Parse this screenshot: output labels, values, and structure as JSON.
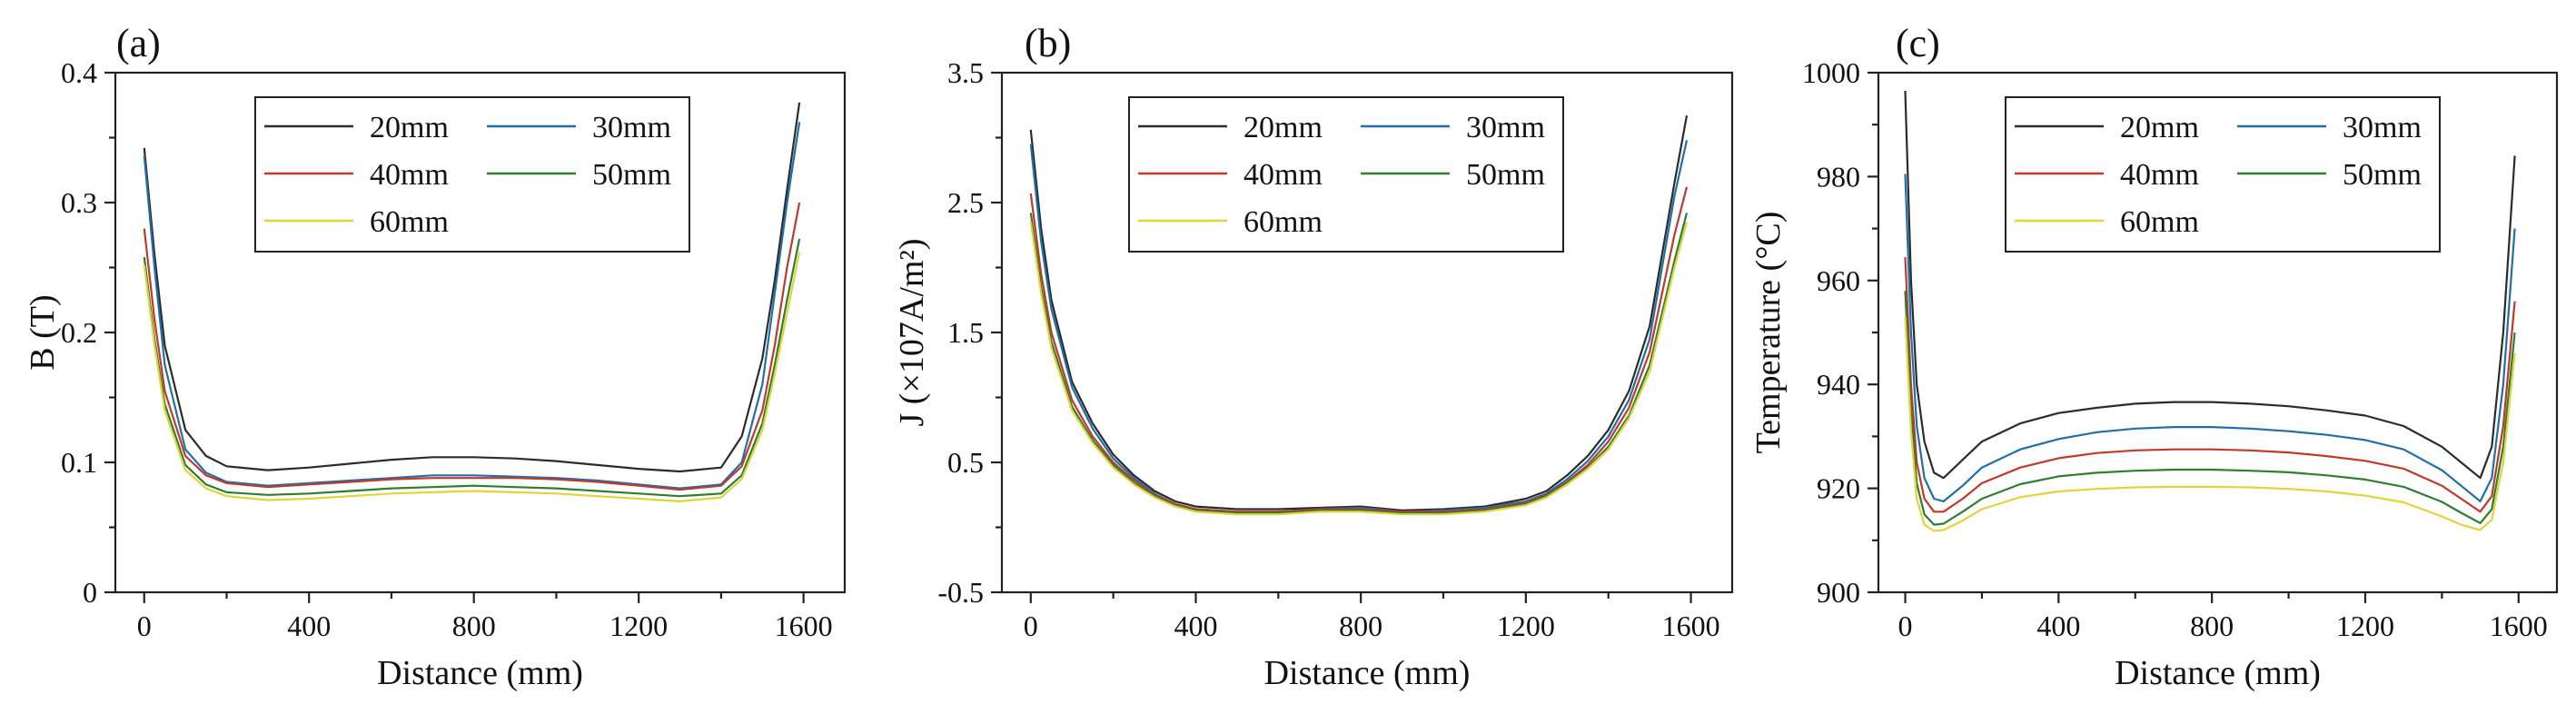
{
  "chart_data": [
    {
      "type": "line",
      "panel_label": "(a)",
      "xlabel": "Distance (mm)",
      "ylabel": "B (T)",
      "xlim": [
        -70,
        1700
      ],
      "ylim": [
        0,
        0.4
      ],
      "xticks": [
        0,
        400,
        800,
        1200,
        1600
      ],
      "xtick_labels": [
        "0",
        "400",
        "800",
        "1200",
        "1600"
      ],
      "yticks": [
        0,
        0.1,
        0.2,
        0.3,
        0.4
      ],
      "ytick_labels": [
        "0",
        "0.1",
        "0.2",
        "0.3",
        "0.4"
      ],
      "grid": false,
      "legend_position": "top-center",
      "series": [
        {
          "name": "20mm",
          "color": "#2b2b2b",
          "x": [
            0,
            25,
            50,
            100,
            150,
            200,
            300,
            400,
            500,
            600,
            700,
            800,
            900,
            1000,
            1100,
            1200,
            1300,
            1400,
            1450,
            1500,
            1530,
            1560,
            1590
          ],
          "y": [
            0.342,
            0.26,
            0.19,
            0.125,
            0.105,
            0.097,
            0.094,
            0.096,
            0.099,
            0.102,
            0.104,
            0.104,
            0.103,
            0.101,
            0.098,
            0.095,
            0.093,
            0.096,
            0.12,
            0.18,
            0.24,
            0.31,
            0.377
          ]
        },
        {
          "name": "30mm",
          "color": "#1f6fa8",
          "x": [
            0,
            25,
            50,
            100,
            150,
            200,
            300,
            400,
            500,
            600,
            700,
            800,
            900,
            1000,
            1100,
            1200,
            1300,
            1400,
            1450,
            1500,
            1530,
            1560,
            1590
          ],
          "y": [
            0.336,
            0.25,
            0.175,
            0.11,
            0.092,
            0.085,
            0.082,
            0.084,
            0.086,
            0.088,
            0.09,
            0.09,
            0.089,
            0.088,
            0.086,
            0.083,
            0.08,
            0.083,
            0.1,
            0.16,
            0.23,
            0.3,
            0.362
          ]
        },
        {
          "name": "40mm",
          "color": "#c0392b",
          "x": [
            0,
            25,
            50,
            100,
            150,
            200,
            300,
            400,
            500,
            600,
            700,
            800,
            900,
            1000,
            1100,
            1200,
            1300,
            1400,
            1450,
            1500,
            1530,
            1560,
            1590
          ],
          "y": [
            0.28,
            0.21,
            0.155,
            0.105,
            0.09,
            0.084,
            0.081,
            0.083,
            0.085,
            0.087,
            0.088,
            0.088,
            0.088,
            0.087,
            0.085,
            0.082,
            0.079,
            0.082,
            0.097,
            0.14,
            0.19,
            0.25,
            0.3
          ]
        },
        {
          "name": "50mm",
          "color": "#2e7d32",
          "x": [
            0,
            25,
            50,
            100,
            150,
            200,
            300,
            400,
            500,
            600,
            700,
            800,
            900,
            1000,
            1100,
            1200,
            1300,
            1400,
            1450,
            1500,
            1530,
            1560,
            1590
          ],
          "y": [
            0.258,
            0.195,
            0.145,
            0.098,
            0.083,
            0.077,
            0.075,
            0.076,
            0.078,
            0.08,
            0.081,
            0.082,
            0.081,
            0.08,
            0.078,
            0.076,
            0.074,
            0.076,
            0.09,
            0.13,
            0.175,
            0.225,
            0.272
          ]
        },
        {
          "name": "60mm",
          "color": "#e3d23a",
          "x": [
            0,
            25,
            50,
            100,
            150,
            200,
            300,
            400,
            500,
            600,
            700,
            800,
            900,
            1000,
            1100,
            1200,
            1300,
            1400,
            1450,
            1500,
            1530,
            1560,
            1590
          ],
          "y": [
            0.252,
            0.19,
            0.14,
            0.094,
            0.08,
            0.074,
            0.071,
            0.072,
            0.074,
            0.076,
            0.077,
            0.078,
            0.077,
            0.076,
            0.074,
            0.072,
            0.07,
            0.073,
            0.087,
            0.125,
            0.168,
            0.215,
            0.262
          ]
        }
      ]
    },
    {
      "type": "line",
      "panel_label": "(b)",
      "xlabel": "Distance (mm)",
      "ylabel": "J (×107A/m²)",
      "xlim": [
        -70,
        1700
      ],
      "ylim": [
        -0.5,
        3.5
      ],
      "xticks": [
        0,
        400,
        800,
        1200,
        1600
      ],
      "xtick_labels": [
        "0",
        "400",
        "800",
        "1200",
        "1600"
      ],
      "yticks": [
        -0.5,
        0.5,
        1.5,
        2.5,
        3.5
      ],
      "ytick_labels": [
        "-0.5",
        "0.5",
        "1.5",
        "2.5",
        "3.5"
      ],
      "grid": false,
      "legend_position": "top-center",
      "series": [
        {
          "name": "20mm",
          "color": "#2b2b2b",
          "x": [
            0,
            25,
            50,
            100,
            150,
            200,
            250,
            300,
            350,
            400,
            500,
            600,
            700,
            800,
            900,
            1000,
            1100,
            1200,
            1250,
            1300,
            1350,
            1400,
            1450,
            1500,
            1530,
            1560,
            1590
          ],
          "y": [
            3.06,
            2.3,
            1.75,
            1.12,
            0.8,
            0.56,
            0.4,
            0.28,
            0.2,
            0.16,
            0.14,
            0.14,
            0.15,
            0.16,
            0.13,
            0.14,
            0.16,
            0.22,
            0.28,
            0.4,
            0.55,
            0.75,
            1.05,
            1.55,
            2.1,
            2.65,
            3.17
          ]
        },
        {
          "name": "30mm",
          "color": "#1f6fa8",
          "x": [
            0,
            25,
            50,
            100,
            150,
            200,
            250,
            300,
            350,
            400,
            500,
            600,
            700,
            800,
            900,
            1000,
            1100,
            1200,
            1250,
            1300,
            1350,
            1400,
            1450,
            1500,
            1530,
            1560,
            1590
          ],
          "y": [
            2.95,
            2.2,
            1.68,
            1.08,
            0.76,
            0.53,
            0.38,
            0.26,
            0.18,
            0.14,
            0.12,
            0.12,
            0.14,
            0.15,
            0.12,
            0.13,
            0.15,
            0.2,
            0.26,
            0.37,
            0.51,
            0.7,
            0.98,
            1.45,
            2.0,
            2.55,
            2.98
          ]
        },
        {
          "name": "40mm",
          "color": "#c0392b",
          "x": [
            0,
            25,
            50,
            100,
            150,
            200,
            250,
            300,
            350,
            400,
            500,
            600,
            700,
            800,
            900,
            1000,
            1100,
            1200,
            1250,
            1300,
            1350,
            1400,
            1450,
            1500,
            1530,
            1560,
            1590
          ],
          "y": [
            2.57,
            1.95,
            1.5,
            0.98,
            0.7,
            0.5,
            0.36,
            0.25,
            0.18,
            0.14,
            0.12,
            0.12,
            0.14,
            0.14,
            0.12,
            0.12,
            0.14,
            0.19,
            0.25,
            0.35,
            0.48,
            0.66,
            0.92,
            1.35,
            1.8,
            2.25,
            2.62
          ]
        },
        {
          "name": "50mm",
          "color": "#2e7d32",
          "x": [
            0,
            25,
            50,
            100,
            150,
            200,
            250,
            300,
            350,
            400,
            500,
            600,
            700,
            800,
            900,
            1000,
            1100,
            1200,
            1250,
            1300,
            1350,
            1400,
            1450,
            1500,
            1530,
            1560,
            1590
          ],
          "y": [
            2.42,
            1.85,
            1.43,
            0.93,
            0.67,
            0.48,
            0.34,
            0.24,
            0.17,
            0.13,
            0.11,
            0.11,
            0.13,
            0.13,
            0.11,
            0.11,
            0.13,
            0.18,
            0.24,
            0.34,
            0.46,
            0.62,
            0.86,
            1.25,
            1.65,
            2.05,
            2.42
          ]
        },
        {
          "name": "60mm",
          "color": "#e3d23a",
          "x": [
            0,
            25,
            50,
            100,
            150,
            200,
            250,
            300,
            350,
            400,
            500,
            600,
            700,
            800,
            900,
            1000,
            1100,
            1200,
            1250,
            1300,
            1350,
            1400,
            1450,
            1500,
            1530,
            1560,
            1590
          ],
          "y": [
            2.35,
            1.8,
            1.38,
            0.9,
            0.65,
            0.46,
            0.33,
            0.23,
            0.16,
            0.12,
            0.1,
            0.1,
            0.12,
            0.12,
            0.1,
            0.1,
            0.12,
            0.17,
            0.23,
            0.33,
            0.45,
            0.6,
            0.84,
            1.2,
            1.6,
            2.0,
            2.35
          ]
        }
      ]
    },
    {
      "type": "line",
      "panel_label": "(c)",
      "xlabel": "Distance (mm)",
      "ylabel": "Temperature (°C)",
      "xlim": [
        -70,
        1700
      ],
      "ylim": [
        900,
        1000
      ],
      "xticks": [
        0,
        400,
        800,
        1200,
        1600
      ],
      "xtick_labels": [
        "0",
        "400",
        "800",
        "1200",
        "1600"
      ],
      "yticks": [
        900,
        920,
        940,
        960,
        980,
        1000
      ],
      "ytick_labels": [
        "900",
        "920",
        "940",
        "960",
        "980",
        "1000"
      ],
      "grid": false,
      "legend_position": "top-center",
      "series": [
        {
          "name": "20mm",
          "color": "#2b2b2b",
          "x": [
            0,
            15,
            30,
            50,
            75,
            100,
            150,
            200,
            300,
            400,
            500,
            600,
            700,
            800,
            900,
            1000,
            1100,
            1200,
            1300,
            1400,
            1450,
            1500,
            1530,
            1560,
            1590
          ],
          "y": [
            996.5,
            960,
            940,
            929,
            923,
            922,
            925.5,
            929,
            932.5,
            934.5,
            935.5,
            936.3,
            936.6,
            936.6,
            936.3,
            935.8,
            935,
            934,
            932,
            928,
            925,
            922,
            928,
            950,
            984
          ]
        },
        {
          "name": "30mm",
          "color": "#1f6fa8",
          "x": [
            0,
            15,
            30,
            50,
            75,
            100,
            150,
            200,
            300,
            400,
            500,
            600,
            700,
            800,
            900,
            1000,
            1100,
            1200,
            1300,
            1400,
            1450,
            1500,
            1530,
            1560,
            1590
          ],
          "y": [
            980.5,
            950,
            932,
            922,
            918,
            917.5,
            920.5,
            924,
            927.5,
            929.5,
            930.8,
            931.5,
            931.8,
            931.8,
            931.5,
            931,
            930.3,
            929.3,
            927.5,
            923.5,
            920.5,
            917.5,
            922,
            940,
            970
          ]
        },
        {
          "name": "40mm",
          "color": "#c0392b",
          "x": [
            0,
            15,
            30,
            50,
            75,
            100,
            150,
            200,
            300,
            400,
            500,
            600,
            700,
            800,
            900,
            1000,
            1100,
            1200,
            1300,
            1400,
            1450,
            1500,
            1530,
            1560,
            1590
          ],
          "y": [
            964.5,
            940,
            925,
            918,
            915.5,
            915.5,
            918,
            921,
            924,
            925.8,
            926.8,
            927.3,
            927.5,
            927.5,
            927.3,
            926.9,
            926.2,
            925.3,
            923.8,
            920.5,
            918,
            915.5,
            918.5,
            932,
            956
          ]
        },
        {
          "name": "50mm",
          "color": "#2e7d32",
          "x": [
            0,
            15,
            30,
            50,
            75,
            100,
            150,
            200,
            300,
            400,
            500,
            600,
            700,
            800,
            900,
            1000,
            1100,
            1200,
            1300,
            1400,
            1450,
            1500,
            1530,
            1560,
            1590
          ],
          "y": [
            958,
            935,
            921,
            915,
            913,
            913.2,
            915.5,
            918,
            920.8,
            922.3,
            923,
            923.4,
            923.6,
            923.6,
            923.4,
            923.1,
            922.5,
            921.7,
            920.3,
            917.4,
            915.3,
            913.3,
            916,
            928,
            950
          ]
        },
        {
          "name": "60mm",
          "color": "#e3d23a",
          "x": [
            0,
            15,
            30,
            50,
            75,
            100,
            150,
            200,
            300,
            400,
            500,
            600,
            700,
            800,
            900,
            1000,
            1100,
            1200,
            1300,
            1400,
            1450,
            1500,
            1530,
            1560,
            1590
          ],
          "y": [
            953,
            931,
            918,
            913,
            911.8,
            912,
            913.8,
            916,
            918.3,
            919.4,
            919.9,
            920.2,
            920.3,
            920.3,
            920.2,
            919.9,
            919.4,
            918.6,
            917.3,
            914.6,
            913,
            912,
            914,
            925,
            946
          ]
        }
      ]
    }
  ]
}
